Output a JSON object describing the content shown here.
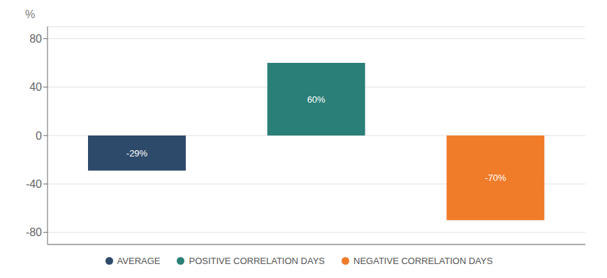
{
  "chart_data": {
    "type": "bar",
    "categories": [
      "AVERAGE",
      "POSITIVE CORRELATION DAYS",
      "NEGATIVE CORRELATION DAYS"
    ],
    "values": [
      -29,
      60,
      -70
    ],
    "value_labels": [
      "-29%",
      "60%",
      "-70%"
    ],
    "colors": [
      "#2e4a6b",
      "#2a7f78",
      "#f07c2a"
    ],
    "ylim": [
      -90,
      90
    ],
    "yticks": [
      -80,
      -40,
      0,
      40,
      80
    ],
    "ylabel": "%",
    "grid": true,
    "legend": "bottom",
    "data_labels": true,
    "tick_labels": "y"
  }
}
